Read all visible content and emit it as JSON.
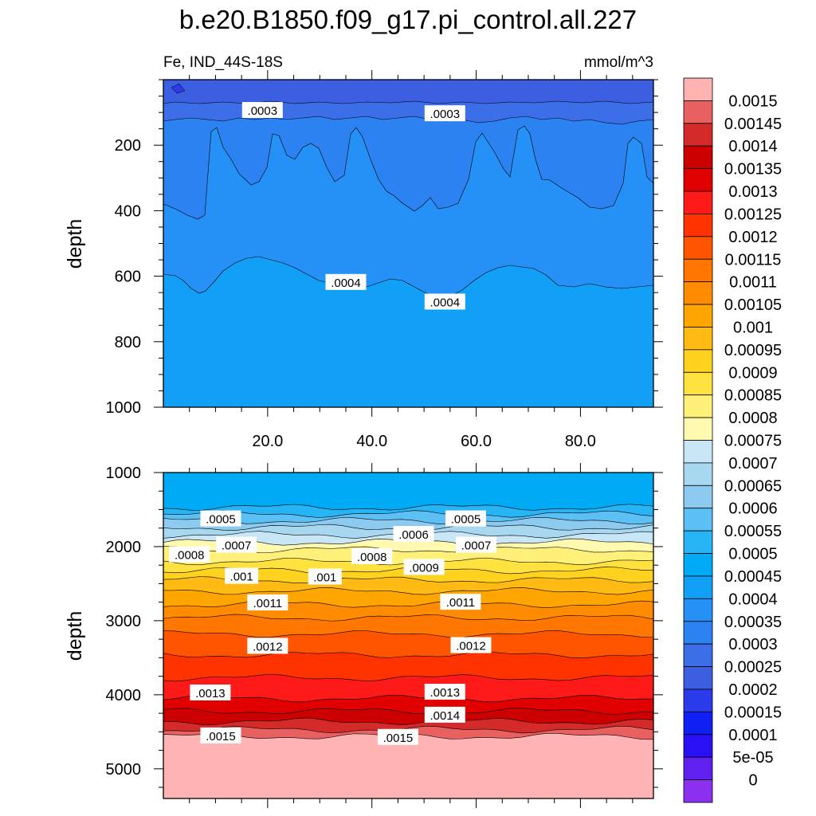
{
  "chart_data": {
    "type": "contour",
    "title": "b.e20.B1850.f09_g17.pi_control.all.227",
    "left_subtitle": "Fe, IND_44S-18S",
    "right_subtitle": "mmol/m^3",
    "panels": [
      {
        "name": "upper",
        "ylabel": "depth",
        "ylim": [
          0,
          1000
        ],
        "xlim": [
          0,
          94
        ],
        "yticks": [
          200,
          400,
          600,
          800,
          1000
        ],
        "xticks": [
          20,
          40,
          60,
          80
        ],
        "xtick_labels": [
          "20.0",
          "40.0",
          "60.0",
          "80.0"
        ],
        "contour_labels": [
          {
            "text": ".0003",
            "x": 19,
            "y": 95
          },
          {
            "text": ".0003",
            "x": 54,
            "y": 105
          },
          {
            "text": ".0004",
            "x": 35,
            "y": 620
          },
          {
            "text": ".0004",
            "x": 54,
            "y": 680
          }
        ]
      },
      {
        "name": "lower",
        "ylabel": "depth",
        "ylim": [
          1000,
          5400
        ],
        "xlim": [
          0,
          94
        ],
        "yticks": [
          1000,
          2000,
          3000,
          4000,
          5000
        ],
        "contour_labels": [
          {
            "text": ".0005",
            "x": 11,
            "y": 1630
          },
          {
            "text": ".0005",
            "x": 58,
            "y": 1630
          },
          {
            "text": ".0006",
            "x": 48,
            "y": 1840
          },
          {
            "text": ".0007",
            "x": 14,
            "y": 1985
          },
          {
            "text": ".0007",
            "x": 60,
            "y": 1985
          },
          {
            "text": ".0008",
            "x": 5,
            "y": 2115
          },
          {
            "text": ".0008",
            "x": 40,
            "y": 2140
          },
          {
            "text": ".0009",
            "x": 50,
            "y": 2285
          },
          {
            "text": ".001",
            "x": 15,
            "y": 2405
          },
          {
            "text": ".001",
            "x": 31,
            "y": 2415
          },
          {
            "text": ".0011",
            "x": 20,
            "y": 2765
          },
          {
            "text": ".0011",
            "x": 57,
            "y": 2755
          },
          {
            "text": ".0012",
            "x": 20,
            "y": 3350
          },
          {
            "text": ".0012",
            "x": 59,
            "y": 3340
          },
          {
            "text": ".0013",
            "x": 9,
            "y": 3980
          },
          {
            "text": ".0013",
            "x": 54,
            "y": 3970
          },
          {
            "text": ".0014",
            "x": 54,
            "y": 4280
          },
          {
            "text": ".0015",
            "x": 11,
            "y": 4560
          },
          {
            "text": ".0015",
            "x": 45,
            "y": 4580
          }
        ]
      }
    ],
    "colorbar": {
      "labels": [
        "0.0015",
        "0.00145",
        "0.0014",
        "0.00135",
        "0.0013",
        "0.00125",
        "0.0012",
        "0.00115",
        "0.0011",
        "0.00105",
        "0.001",
        "0.00095",
        "0.0009",
        "0.00085",
        "0.0008",
        "0.00075",
        "0.0007",
        "0.00065",
        "0.0006",
        "0.00055",
        "0.0005",
        "0.00045",
        "0.0004",
        "0.00035",
        "0.0003",
        "0.00025",
        "0.0002",
        "0.00015",
        "0.0001",
        "5e-05",
        "0"
      ],
      "colors": [
        "#ffb3b3",
        "#e86060",
        "#d42a2a",
        "#cc0000",
        "#e00000",
        "#ff1a1a",
        "#ff3300",
        "#ff5500",
        "#ff7700",
        "#ff8c00",
        "#ffa500",
        "#ffba14",
        "#ffd21f",
        "#ffe23f",
        "#fff07a",
        "#fffab0",
        "#c8e6f5",
        "#a8d8f0",
        "#8ccaf0",
        "#5cc0f5",
        "#26b4f5",
        "#00aaf5",
        "#11a0f5",
        "#2590f5",
        "#2b82f0",
        "#3c6ee8",
        "#3c5ee0",
        "#2b3bea",
        "#1020f5",
        "#2a10f5",
        "#6020f0",
        "#8c30f0"
      ]
    }
  }
}
